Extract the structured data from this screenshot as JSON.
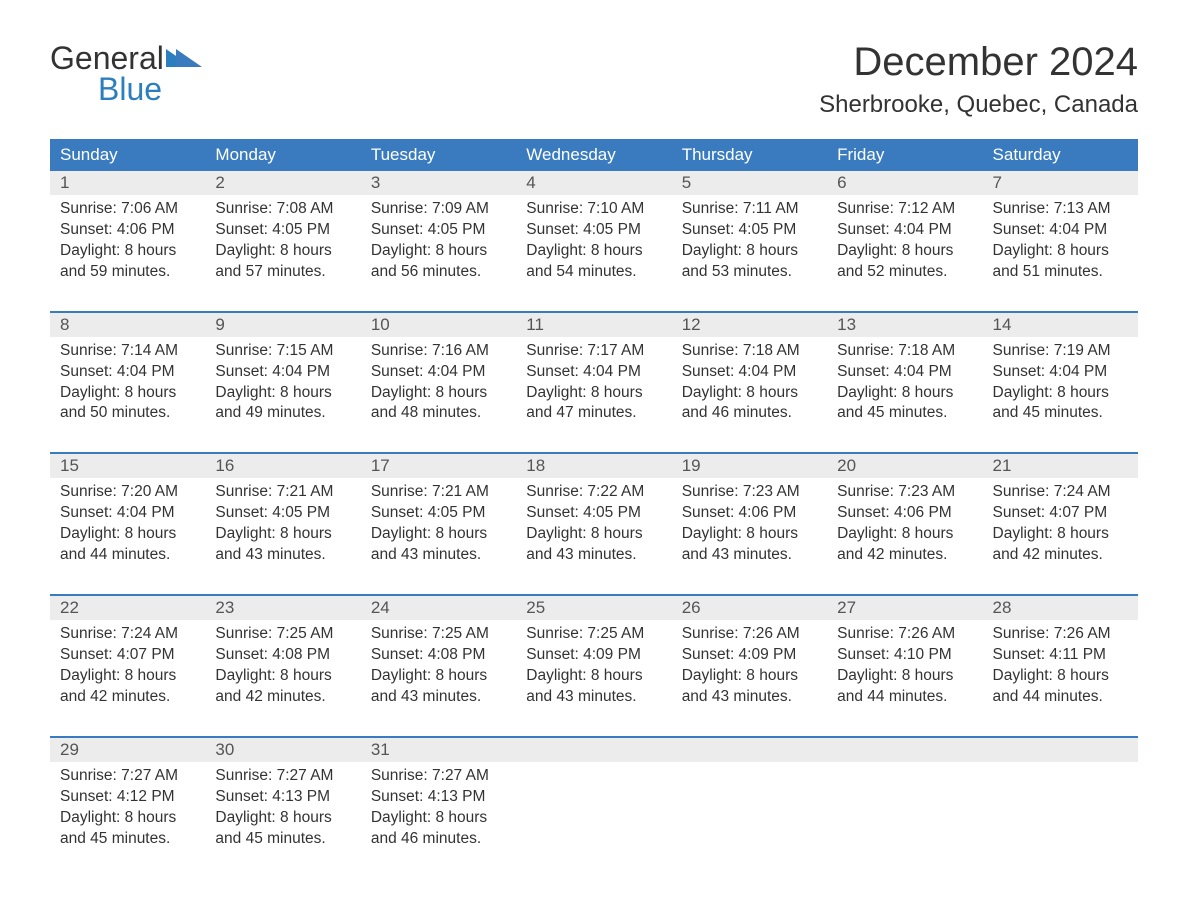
{
  "logo": {
    "text1": "General",
    "text2": "Blue"
  },
  "title": "December 2024",
  "location": "Sherbrooke, Quebec, Canada",
  "colors": {
    "header_bg": "#3a7bbf",
    "header_text": "#ffffff",
    "date_row_bg": "#ececec",
    "week_border": "#3a7bbf",
    "body_text": "#333333",
    "logo_blue": "#2b7fbf"
  },
  "day_names": [
    "Sunday",
    "Monday",
    "Tuesday",
    "Wednesday",
    "Thursday",
    "Friday",
    "Saturday"
  ],
  "weeks": [
    {
      "dates": [
        "1",
        "2",
        "3",
        "4",
        "5",
        "6",
        "7"
      ],
      "cells": [
        {
          "sunrise": "Sunrise: 7:06 AM",
          "sunset": "Sunset: 4:06 PM",
          "d1": "Daylight: 8 hours",
          "d2": "and 59 minutes."
        },
        {
          "sunrise": "Sunrise: 7:08 AM",
          "sunset": "Sunset: 4:05 PM",
          "d1": "Daylight: 8 hours",
          "d2": "and 57 minutes."
        },
        {
          "sunrise": "Sunrise: 7:09 AM",
          "sunset": "Sunset: 4:05 PM",
          "d1": "Daylight: 8 hours",
          "d2": "and 56 minutes."
        },
        {
          "sunrise": "Sunrise: 7:10 AM",
          "sunset": "Sunset: 4:05 PM",
          "d1": "Daylight: 8 hours",
          "d2": "and 54 minutes."
        },
        {
          "sunrise": "Sunrise: 7:11 AM",
          "sunset": "Sunset: 4:05 PM",
          "d1": "Daylight: 8 hours",
          "d2": "and 53 minutes."
        },
        {
          "sunrise": "Sunrise: 7:12 AM",
          "sunset": "Sunset: 4:04 PM",
          "d1": "Daylight: 8 hours",
          "d2": "and 52 minutes."
        },
        {
          "sunrise": "Sunrise: 7:13 AM",
          "sunset": "Sunset: 4:04 PM",
          "d1": "Daylight: 8 hours",
          "d2": "and 51 minutes."
        }
      ]
    },
    {
      "dates": [
        "8",
        "9",
        "10",
        "11",
        "12",
        "13",
        "14"
      ],
      "cells": [
        {
          "sunrise": "Sunrise: 7:14 AM",
          "sunset": "Sunset: 4:04 PM",
          "d1": "Daylight: 8 hours",
          "d2": "and 50 minutes."
        },
        {
          "sunrise": "Sunrise: 7:15 AM",
          "sunset": "Sunset: 4:04 PM",
          "d1": "Daylight: 8 hours",
          "d2": "and 49 minutes."
        },
        {
          "sunrise": "Sunrise: 7:16 AM",
          "sunset": "Sunset: 4:04 PM",
          "d1": "Daylight: 8 hours",
          "d2": "and 48 minutes."
        },
        {
          "sunrise": "Sunrise: 7:17 AM",
          "sunset": "Sunset: 4:04 PM",
          "d1": "Daylight: 8 hours",
          "d2": "and 47 minutes."
        },
        {
          "sunrise": "Sunrise: 7:18 AM",
          "sunset": "Sunset: 4:04 PM",
          "d1": "Daylight: 8 hours",
          "d2": "and 46 minutes."
        },
        {
          "sunrise": "Sunrise: 7:18 AM",
          "sunset": "Sunset: 4:04 PM",
          "d1": "Daylight: 8 hours",
          "d2": "and 45 minutes."
        },
        {
          "sunrise": "Sunrise: 7:19 AM",
          "sunset": "Sunset: 4:04 PM",
          "d1": "Daylight: 8 hours",
          "d2": "and 45 minutes."
        }
      ]
    },
    {
      "dates": [
        "15",
        "16",
        "17",
        "18",
        "19",
        "20",
        "21"
      ],
      "cells": [
        {
          "sunrise": "Sunrise: 7:20 AM",
          "sunset": "Sunset: 4:04 PM",
          "d1": "Daylight: 8 hours",
          "d2": "and 44 minutes."
        },
        {
          "sunrise": "Sunrise: 7:21 AM",
          "sunset": "Sunset: 4:05 PM",
          "d1": "Daylight: 8 hours",
          "d2": "and 43 minutes."
        },
        {
          "sunrise": "Sunrise: 7:21 AM",
          "sunset": "Sunset: 4:05 PM",
          "d1": "Daylight: 8 hours",
          "d2": "and 43 minutes."
        },
        {
          "sunrise": "Sunrise: 7:22 AM",
          "sunset": "Sunset: 4:05 PM",
          "d1": "Daylight: 8 hours",
          "d2": "and 43 minutes."
        },
        {
          "sunrise": "Sunrise: 7:23 AM",
          "sunset": "Sunset: 4:06 PM",
          "d1": "Daylight: 8 hours",
          "d2": "and 43 minutes."
        },
        {
          "sunrise": "Sunrise: 7:23 AM",
          "sunset": "Sunset: 4:06 PM",
          "d1": "Daylight: 8 hours",
          "d2": "and 42 minutes."
        },
        {
          "sunrise": "Sunrise: 7:24 AM",
          "sunset": "Sunset: 4:07 PM",
          "d1": "Daylight: 8 hours",
          "d2": "and 42 minutes."
        }
      ]
    },
    {
      "dates": [
        "22",
        "23",
        "24",
        "25",
        "26",
        "27",
        "28"
      ],
      "cells": [
        {
          "sunrise": "Sunrise: 7:24 AM",
          "sunset": "Sunset: 4:07 PM",
          "d1": "Daylight: 8 hours",
          "d2": "and 42 minutes."
        },
        {
          "sunrise": "Sunrise: 7:25 AM",
          "sunset": "Sunset: 4:08 PM",
          "d1": "Daylight: 8 hours",
          "d2": "and 42 minutes."
        },
        {
          "sunrise": "Sunrise: 7:25 AM",
          "sunset": "Sunset: 4:08 PM",
          "d1": "Daylight: 8 hours",
          "d2": "and 43 minutes."
        },
        {
          "sunrise": "Sunrise: 7:25 AM",
          "sunset": "Sunset: 4:09 PM",
          "d1": "Daylight: 8 hours",
          "d2": "and 43 minutes."
        },
        {
          "sunrise": "Sunrise: 7:26 AM",
          "sunset": "Sunset: 4:09 PM",
          "d1": "Daylight: 8 hours",
          "d2": "and 43 minutes."
        },
        {
          "sunrise": "Sunrise: 7:26 AM",
          "sunset": "Sunset: 4:10 PM",
          "d1": "Daylight: 8 hours",
          "d2": "and 44 minutes."
        },
        {
          "sunrise": "Sunrise: 7:26 AM",
          "sunset": "Sunset: 4:11 PM",
          "d1": "Daylight: 8 hours",
          "d2": "and 44 minutes."
        }
      ]
    },
    {
      "dates": [
        "29",
        "30",
        "31",
        "",
        "",
        "",
        ""
      ],
      "cells": [
        {
          "sunrise": "Sunrise: 7:27 AM",
          "sunset": "Sunset: 4:12 PM",
          "d1": "Daylight: 8 hours",
          "d2": "and 45 minutes."
        },
        {
          "sunrise": "Sunrise: 7:27 AM",
          "sunset": "Sunset: 4:13 PM",
          "d1": "Daylight: 8 hours",
          "d2": "and 45 minutes."
        },
        {
          "sunrise": "Sunrise: 7:27 AM",
          "sunset": "Sunset: 4:13 PM",
          "d1": "Daylight: 8 hours",
          "d2": "and 46 minutes."
        },
        null,
        null,
        null,
        null
      ]
    }
  ]
}
